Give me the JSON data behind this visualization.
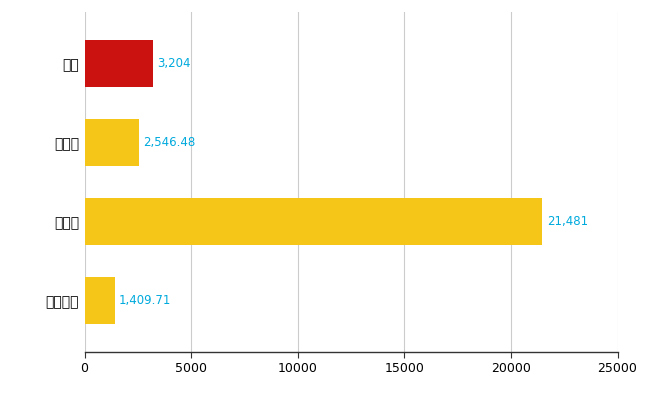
{
  "categories": [
    "西区",
    "県平均",
    "県最大",
    "全国平均"
  ],
  "values": [
    3204,
    2546.48,
    21481,
    1409.71
  ],
  "bar_colors": [
    "#cc1111",
    "#f5c518",
    "#f5c518",
    "#f5c518"
  ],
  "value_labels": [
    "3,204",
    "2,546.48",
    "21,481",
    "1,409.71"
  ],
  "xlim": [
    0,
    25000
  ],
  "xticks": [
    0,
    5000,
    10000,
    15000,
    20000,
    25000
  ],
  "xtick_labels": [
    "0",
    "5000",
    "10000",
    "15000",
    "20000",
    "25000"
  ],
  "background_color": "#ffffff",
  "grid_color": "#cccccc",
  "label_color": "#00aadd",
  "bar_height": 0.6,
  "ylabel_fontsize": 10,
  "xlabel_fontsize": 9,
  "value_fontsize": 8.5
}
